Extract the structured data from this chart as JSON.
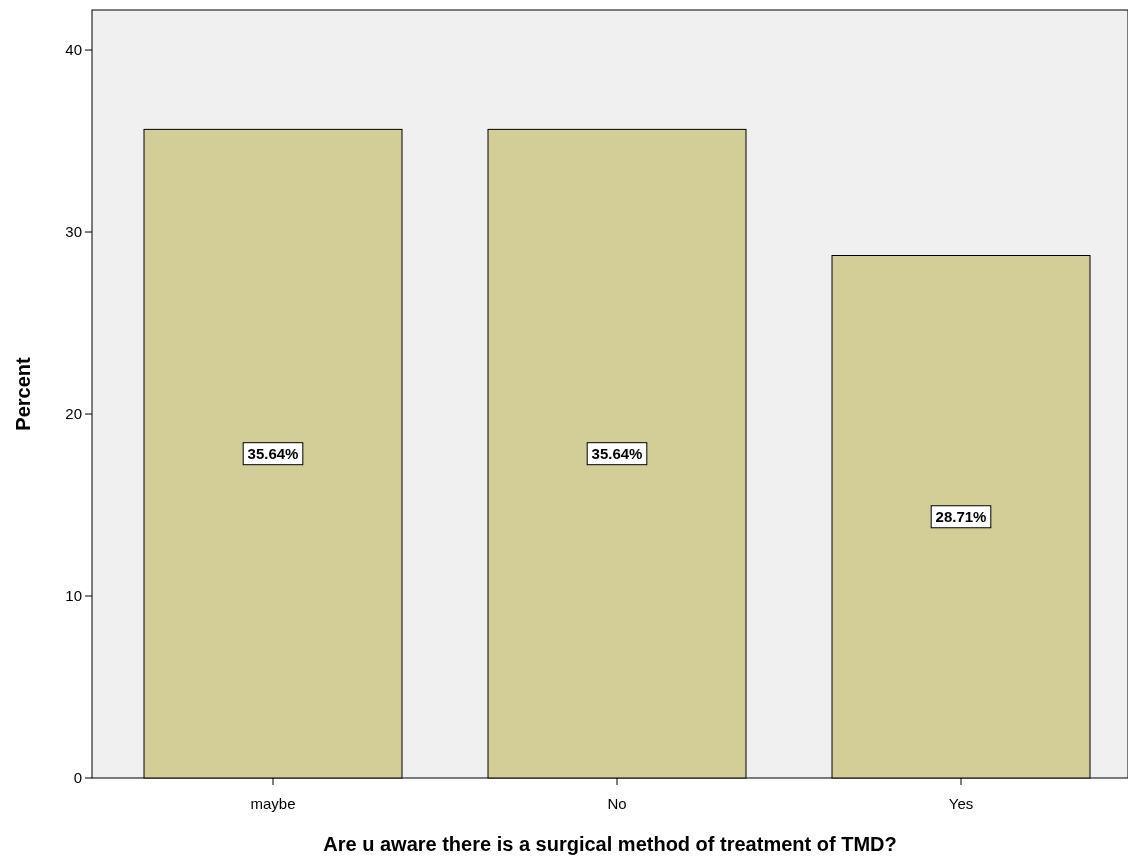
{
  "chart_data": {
    "type": "bar",
    "xlabel": "Are u aware there is a surgical method of treatment of TMD?",
    "ylabel": "Percent",
    "categories": [
      "maybe",
      "No",
      "Yes"
    ],
    "values": [
      35.64,
      35.64,
      28.71
    ],
    "value_labels": [
      "35.64%",
      "35.64%",
      "28.71%"
    ],
    "color": "#d3cd98",
    "ylim": [
      0,
      42.2
    ],
    "yticks": [
      0,
      10,
      20,
      30,
      40
    ],
    "grid": false
  }
}
